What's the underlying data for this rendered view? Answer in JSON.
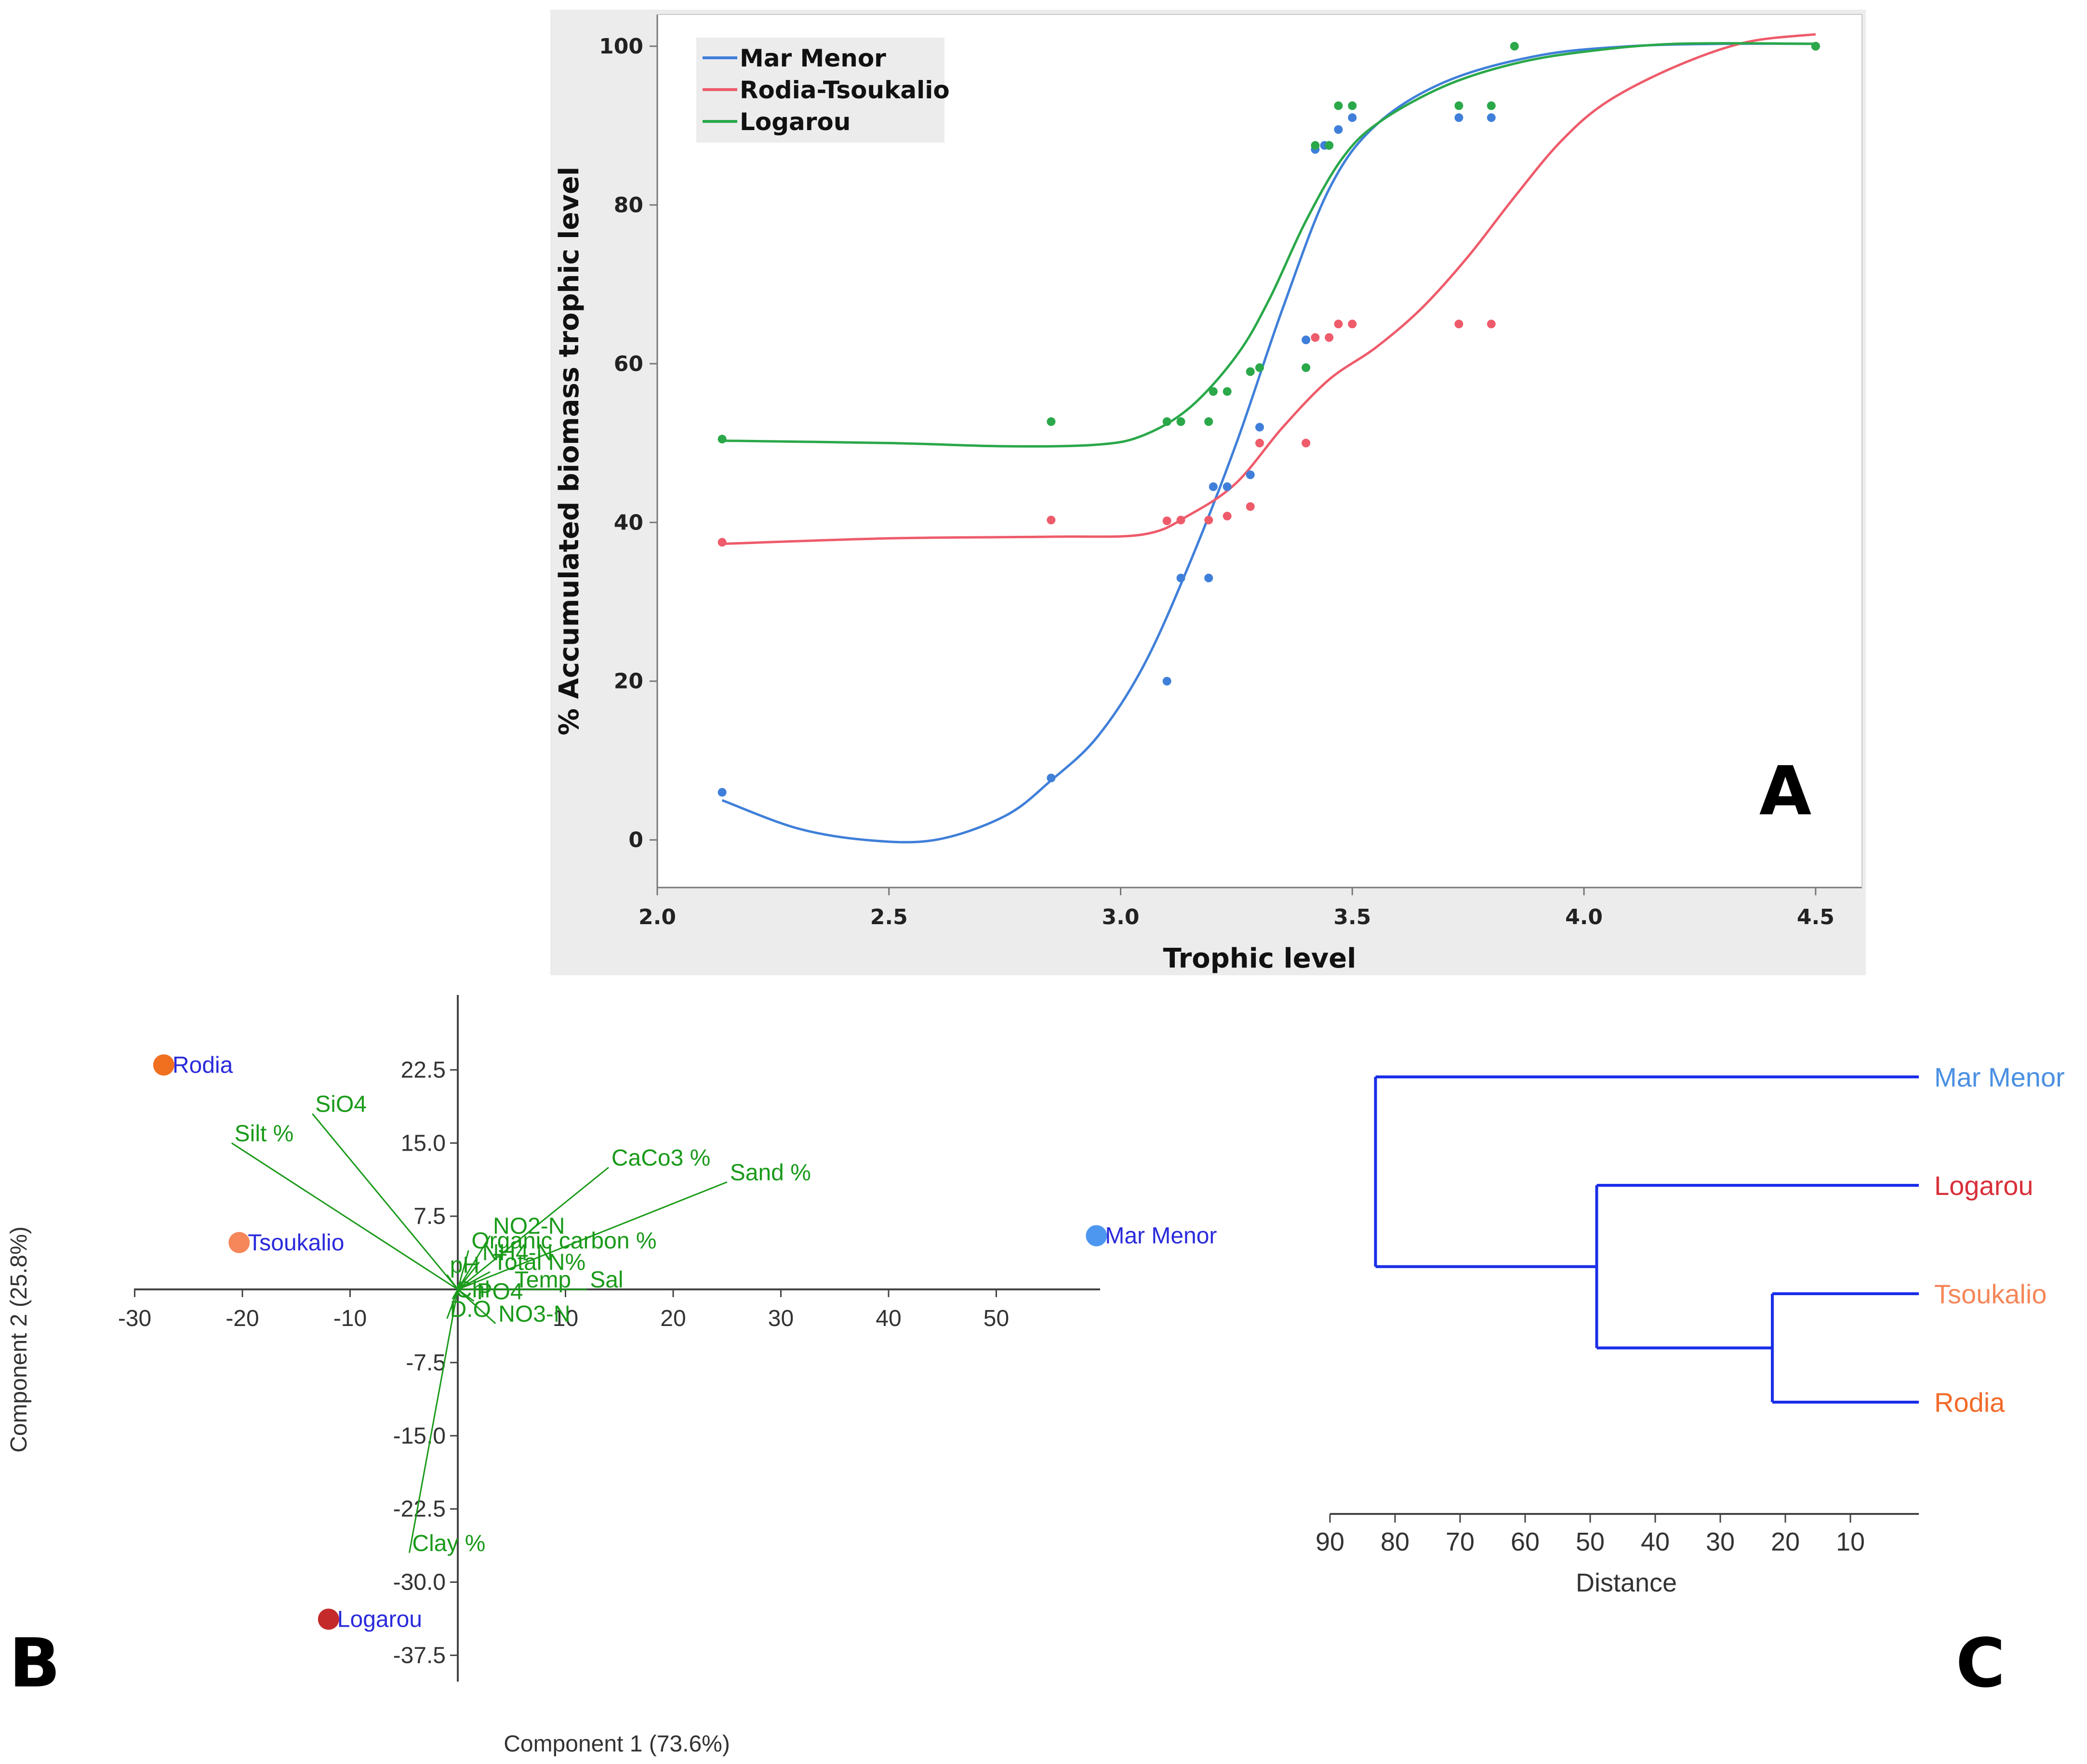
{
  "panels": {
    "a": "A",
    "b": "B",
    "c": "C"
  },
  "colors": {
    "mar_menor": "#3f7fd9",
    "rodia_tsoukalio": "#ee5b6a",
    "logarou": "#2aa84a",
    "loading": "#1a9a1a",
    "site_label": "#2a2adc",
    "dendro": "#1a2ee8"
  },
  "chart_data": [
    {
      "id": "A",
      "type": "scatter",
      "title": "",
      "xlabel": "Trophic level",
      "ylabel": "% Accumulated biomass trophic level",
      "xlim": [
        2.0,
        4.6
      ],
      "ylim": [
        -6,
        104
      ],
      "xticks": [
        "2.0",
        "2.5",
        "3.0",
        "3.5",
        "4.0",
        "4.5"
      ],
      "yticks": [
        "0",
        "20",
        "40",
        "60",
        "80",
        "100"
      ],
      "legend": "top-left",
      "series": [
        {
          "name": "Mar Menor",
          "color": "#3f7fd9",
          "points": [
            [
              2.14,
              6
            ],
            [
              2.85,
              7.8
            ],
            [
              3.1,
              20
            ],
            [
              3.13,
              33
            ],
            [
              3.19,
              33
            ],
            [
              3.2,
              44.5
            ],
            [
              3.23,
              44.5
            ],
            [
              3.28,
              46
            ],
            [
              3.3,
              52
            ],
            [
              3.4,
              63
            ],
            [
              3.42,
              87
            ],
            [
              3.44,
              87.5
            ],
            [
              3.45,
              87.5
            ],
            [
              3.47,
              89.5
            ],
            [
              3.5,
              91
            ],
            [
              3.73,
              91
            ],
            [
              3.8,
              91
            ],
            [
              4.5,
              100
            ]
          ],
          "curve": [
            [
              2.14,
              5
            ],
            [
              2.3,
              1.5
            ],
            [
              2.45,
              0
            ],
            [
              2.6,
              0
            ],
            [
              2.75,
              3
            ],
            [
              2.85,
              7.5
            ],
            [
              2.95,
              13
            ],
            [
              3.05,
              22
            ],
            [
              3.15,
              35
            ],
            [
              3.25,
              50
            ],
            [
              3.35,
              67
            ],
            [
              3.45,
              82
            ],
            [
              3.55,
              90
            ],
            [
              3.7,
              95.5
            ],
            [
              3.9,
              98.8
            ],
            [
              4.1,
              100
            ],
            [
              4.3,
              100.3
            ],
            [
              4.5,
              100.3
            ]
          ]
        },
        {
          "name": "Rodia-Tsoukalio",
          "color": "#ee5b6a",
          "points": [
            [
              2.14,
              37.5
            ],
            [
              2.85,
              40.3
            ],
            [
              3.1,
              40.2
            ],
            [
              3.13,
              40.3
            ],
            [
              3.19,
              40.3
            ],
            [
              3.23,
              40.8
            ],
            [
              3.28,
              42
            ],
            [
              3.3,
              50
            ],
            [
              3.4,
              50
            ],
            [
              3.42,
              63.3
            ],
            [
              3.45,
              63.3
            ],
            [
              3.47,
              65
            ],
            [
              3.5,
              65
            ],
            [
              3.73,
              65
            ],
            [
              3.8,
              65
            ],
            [
              4.5,
              100
            ]
          ],
          "curve": [
            [
              2.14,
              37.3
            ],
            [
              2.5,
              38
            ],
            [
              2.85,
              38.2
            ],
            [
              3.05,
              38.5
            ],
            [
              3.15,
              41
            ],
            [
              3.25,
              45
            ],
            [
              3.35,
              52
            ],
            [
              3.45,
              58
            ],
            [
              3.55,
              62
            ],
            [
              3.65,
              67
            ],
            [
              3.75,
              73.5
            ],
            [
              3.85,
              81
            ],
            [
              3.95,
              88
            ],
            [
              4.05,
              93
            ],
            [
              4.2,
              97.5
            ],
            [
              4.35,
              100.5
            ],
            [
              4.5,
              101.5
            ]
          ]
        },
        {
          "name": "Logarou",
          "color": "#2aa84a",
          "points": [
            [
              2.14,
              50.5
            ],
            [
              2.85,
              52.7
            ],
            [
              3.1,
              52.7
            ],
            [
              3.13,
              52.7
            ],
            [
              3.19,
              52.7
            ],
            [
              3.2,
              56.5
            ],
            [
              3.23,
              56.5
            ],
            [
              3.28,
              59
            ],
            [
              3.3,
              59.5
            ],
            [
              3.4,
              59.5
            ],
            [
              3.42,
              87.5
            ],
            [
              3.45,
              87.5
            ],
            [
              3.47,
              92.5
            ],
            [
              3.5,
              92.5
            ],
            [
              3.73,
              92.5
            ],
            [
              3.8,
              92.5
            ],
            [
              3.85,
              100
            ],
            [
              4.5,
              100
            ]
          ],
          "curve": [
            [
              2.14,
              50.3
            ],
            [
              2.5,
              50
            ],
            [
              2.75,
              49.6
            ],
            [
              2.95,
              49.8
            ],
            [
              3.05,
              51
            ],
            [
              3.15,
              54.5
            ],
            [
              3.25,
              61
            ],
            [
              3.32,
              68
            ],
            [
              3.4,
              78
            ],
            [
              3.48,
              86
            ],
            [
              3.56,
              90.5
            ],
            [
              3.7,
              95
            ],
            [
              3.85,
              97.8
            ],
            [
              4.0,
              99.3
            ],
            [
              4.2,
              100.3
            ],
            [
              4.5,
              100.3
            ]
          ]
        }
      ]
    },
    {
      "id": "B",
      "type": "scatter",
      "title": "",
      "xlabel": "Component 1 (73.6%)",
      "ylabel": "Component 2 (25.8%)",
      "xlim": [
        -30,
        60
      ],
      "ylim": [
        -40,
        30
      ],
      "xticks": [
        "-30",
        "-20",
        "-10",
        "10",
        "20",
        "30",
        "40",
        "50"
      ],
      "yticks": [
        "22.5",
        "15.0",
        "7.5",
        "-7.5",
        "-15.0",
        "-22.5",
        "-30.0",
        "-37.5"
      ],
      "sites": [
        {
          "name": "Rodia",
          "x": -27.3,
          "y": 23.0,
          "color": "#f07020"
        },
        {
          "name": "Tsoukalio",
          "x": -20.3,
          "y": 4.8,
          "color": "#f5875a"
        },
        {
          "name": "Mar Menor",
          "x": 59.3,
          "y": 5.5,
          "color": "#4d97f0"
        },
        {
          "name": "Logarou",
          "x": -12.0,
          "y": -33.8,
          "color": "#c42a2a"
        }
      ],
      "loadings": [
        {
          "name": "SiO4",
          "x": -13.5,
          "y": 18.0
        },
        {
          "name": "Silt %",
          "x": -21.0,
          "y": 15.0
        },
        {
          "name": "CaCo3 %",
          "x": 14.0,
          "y": 12.5
        },
        {
          "name": "Sand %",
          "x": 25.0,
          "y": 11.0
        },
        {
          "name": "NO2-N",
          "x": 3.0,
          "y": 5.5
        },
        {
          "name": "Organic carbon %",
          "x": 1.0,
          "y": 4.0
        },
        {
          "name": "NH4-N",
          "x": 2.0,
          "y": 2.8
        },
        {
          "name": "Total N%",
          "x": 3.0,
          "y": 1.8
        },
        {
          "name": "pH",
          "x": -1.0,
          "y": 1.5
        },
        {
          "name": "Temp",
          "x": 5.0,
          "y": 0.0
        },
        {
          "name": "Sal",
          "x": 12.0,
          "y": 0.0
        },
        {
          "name": "Chl",
          "x": -0.5,
          "y": -1.0
        },
        {
          "name": "PO4",
          "x": 1.5,
          "y": -1.2
        },
        {
          "name": "D.O",
          "x": -1.0,
          "y": -3.0
        },
        {
          "name": "NO3-N",
          "x": 3.5,
          "y": -3.5
        },
        {
          "name": "Clay %",
          "x": -4.5,
          "y": -27.0
        }
      ]
    },
    {
      "id": "C",
      "type": "dendrogram",
      "title": "",
      "xlabel": "Distance",
      "xlim": [
        90,
        0
      ],
      "xticks": [
        "90",
        "80",
        "70",
        "60",
        "50",
        "40",
        "30",
        "20",
        "10"
      ],
      "leaves": [
        {
          "name": "Mar Menor",
          "color": "#4a90e2"
        },
        {
          "name": "Logarou",
          "color": "#d8303a"
        },
        {
          "name": "Tsoukalio",
          "color": "#f5875a"
        },
        {
          "name": "Rodia",
          "color": "#f26a2a"
        }
      ],
      "merges": [
        {
          "items": [
            "Tsoukalio",
            "Rodia"
          ],
          "distance": 22
        },
        {
          "items": [
            "Logarou",
            "Tsoukalio+Rodia"
          ],
          "distance": 49
        },
        {
          "items": [
            "Mar Menor",
            "rest"
          ],
          "distance": 83
        }
      ]
    }
  ]
}
